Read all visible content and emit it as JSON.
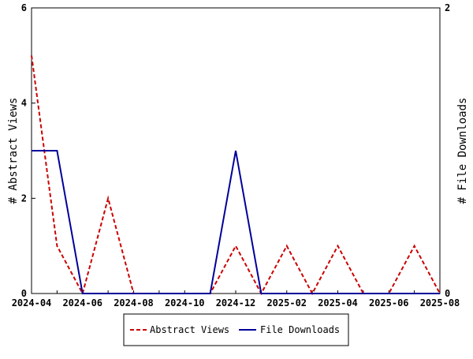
{
  "chart_data": {
    "type": "line",
    "x": [
      "2024-04",
      "2024-05",
      "2024-06",
      "2024-07",
      "2024-08",
      "2024-09",
      "2024-10",
      "2024-11",
      "2024-12",
      "2025-01",
      "2025-02",
      "2025-03",
      "2025-04",
      "2025-05",
      "2025-06",
      "2025-07",
      "2025-08"
    ],
    "x_tick_labels": [
      "2024-04",
      "2024-06",
      "2024-08",
      "2024-10",
      "2024-12",
      "2025-02",
      "2025-04",
      "2025-06",
      "2025-08"
    ],
    "y_left_ticks": [
      "0",
      "2",
      "4",
      "6"
    ],
    "y_right_ticks": [
      "0",
      "2"
    ],
    "ylabel_left": "# Abstract Views",
    "ylabel_right": "# File Downloads",
    "ylim_left": [
      0,
      6
    ],
    "ylim_right": [
      0,
      2
    ],
    "grid": false,
    "legend_placement": "bottom-center",
    "series": [
      {
        "name": "Abstract Views",
        "axis": "left",
        "color": "#cc0000",
        "style": "dashed",
        "values": [
          5,
          1,
          0,
          2,
          0,
          0,
          0,
          0,
          1,
          0,
          1,
          0,
          1,
          0,
          0,
          1,
          0
        ]
      },
      {
        "name": "File Downloads",
        "axis": "left-scaled",
        "color": "#000099",
        "style": "solid",
        "values": [
          3,
          3,
          0,
          0,
          0,
          0,
          0,
          0,
          3,
          0,
          0,
          0,
          0,
          0,
          0,
          0,
          0
        ]
      }
    ]
  }
}
